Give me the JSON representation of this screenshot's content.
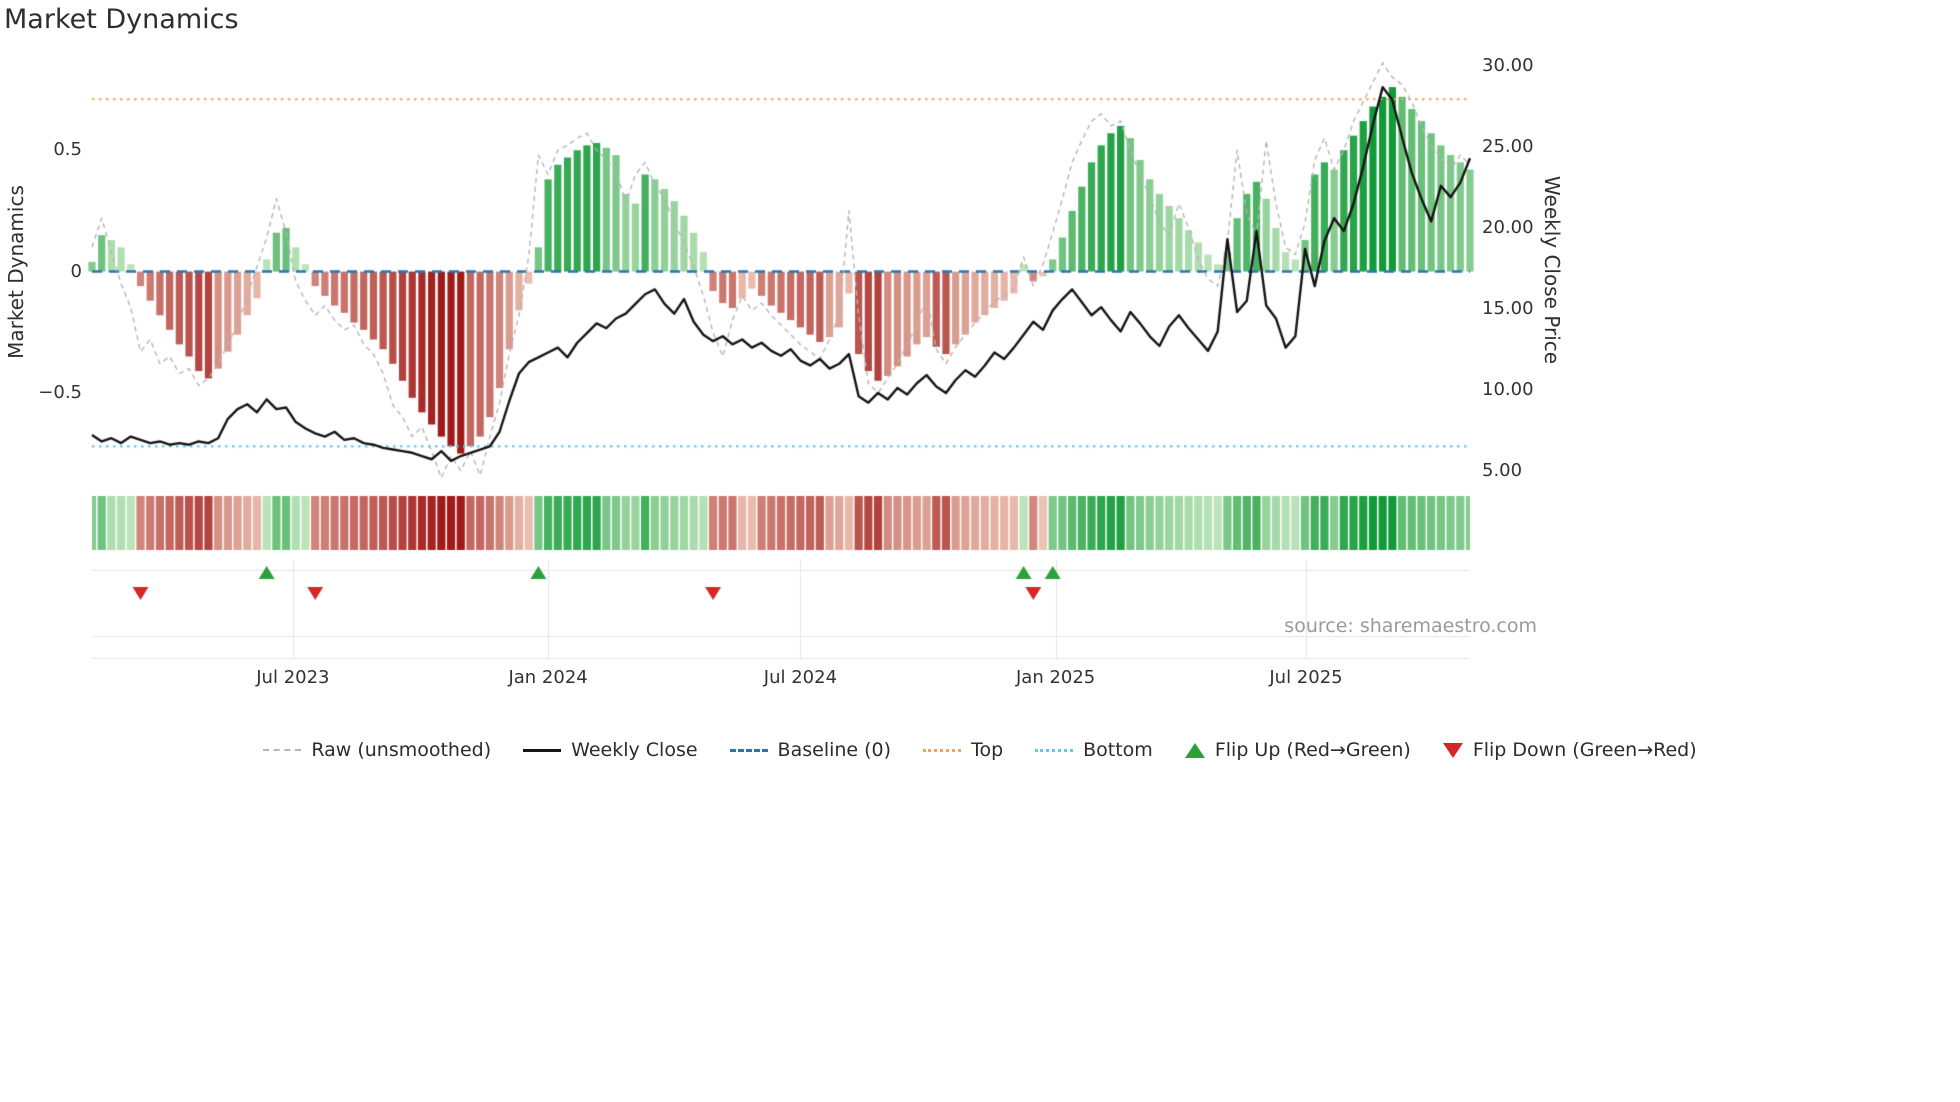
{
  "source": "source: sharemaestro.com",
  "chart_data": {
    "type": "mixed",
    "subtype": "weekly momentum bars + raw dashed line (left axis) + price line (right axis) + heatmap strip + flip markers",
    "title": "Market Dynamics",
    "x_axis": {
      "freq": "weekly",
      "start": "Feb 2023",
      "end": "Oct 2025",
      "ticks": [
        {
          "week": 20.7,
          "label": "Jul 2023"
        },
        {
          "week": 47.0,
          "label": "Jan 2024"
        },
        {
          "week": 73.0,
          "label": "Jul 2024"
        },
        {
          "week": 99.3,
          "label": "Jan 2025"
        },
        {
          "week": 125.1,
          "label": "Jul 2025"
        }
      ]
    },
    "left_axis": {
      "label": "Market Dynamics",
      "range": [
        -0.9,
        0.88
      ],
      "ticks": [
        {
          "v": 0.5,
          "label": "0.5"
        },
        {
          "v": 0,
          "label": "0"
        },
        {
          "v": -0.5,
          "label": "−0.5"
        }
      ]
    },
    "right_axis": {
      "label": "Weekly Close Price",
      "range": [
        3.8,
        30.5
      ],
      "ticks": [
        {
          "v": 30,
          "label": "30.00"
        },
        {
          "v": 25,
          "label": "25.00"
        },
        {
          "v": 20,
          "label": "20.00"
        },
        {
          "v": 15,
          "label": "15.00"
        },
        {
          "v": 10,
          "label": "10.00"
        },
        {
          "v": 5,
          "label": "5.00"
        }
      ]
    },
    "reference_lines": {
      "baseline": 0,
      "top": 0.71,
      "bottom": -0.72
    },
    "series": {
      "bars_market_dynamics": [
        0.04,
        0.15,
        0.13,
        0.1,
        0.03,
        -0.06,
        -0.12,
        -0.18,
        -0.24,
        -0.3,
        -0.35,
        -0.41,
        -0.44,
        -0.4,
        -0.33,
        -0.26,
        -0.18,
        -0.11,
        0.05,
        0.16,
        0.18,
        0.1,
        0.03,
        -0.06,
        -0.1,
        -0.14,
        -0.17,
        -0.21,
        -0.24,
        -0.28,
        -0.32,
        -0.38,
        -0.45,
        -0.52,
        -0.58,
        -0.63,
        -0.68,
        -0.72,
        -0.75,
        -0.72,
        -0.68,
        -0.6,
        -0.48,
        -0.32,
        -0.16,
        -0.05,
        0.1,
        0.38,
        0.44,
        0.47,
        0.5,
        0.52,
        0.53,
        0.51,
        0.48,
        0.32,
        0.28,
        0.4,
        0.38,
        0.34,
        0.29,
        0.23,
        0.16,
        0.08,
        -0.08,
        -0.13,
        -0.15,
        -0.11,
        -0.07,
        -0.1,
        -0.14,
        -0.17,
        -0.2,
        -0.23,
        -0.26,
        -0.29,
        -0.27,
        -0.23,
        -0.09,
        -0.34,
        -0.41,
        -0.45,
        -0.43,
        -0.39,
        -0.35,
        -0.3,
        -0.27,
        -0.31,
        -0.34,
        -0.3,
        -0.26,
        -0.21,
        -0.18,
        -0.15,
        -0.12,
        -0.09,
        0.03,
        -0.04,
        -0.02,
        0.05,
        0.14,
        0.25,
        0.35,
        0.45,
        0.52,
        0.57,
        0.6,
        0.55,
        0.46,
        0.38,
        0.32,
        0.27,
        0.22,
        0.17,
        0.12,
        0.07,
        0.03,
        0.08,
        0.22,
        0.32,
        0.37,
        0.3,
        0.18,
        0.08,
        0.05,
        0.13,
        0.4,
        0.45,
        0.42,
        0.5,
        0.56,
        0.62,
        0.68,
        0.72,
        0.76,
        0.72,
        0.67,
        0.62,
        0.57,
        0.52,
        0.48,
        0.45,
        0.42
      ],
      "raw_unsmoothed": [
        0.1,
        0.22,
        0.08,
        -0.05,
        -0.15,
        -0.33,
        -0.28,
        -0.38,
        -0.35,
        -0.42,
        -0.4,
        -0.47,
        -0.44,
        -0.38,
        -0.3,
        -0.22,
        -0.1,
        0.02,
        0.14,
        0.3,
        0.16,
        -0.04,
        -0.12,
        -0.18,
        -0.14,
        -0.2,
        -0.24,
        -0.22,
        -0.3,
        -0.34,
        -0.42,
        -0.55,
        -0.6,
        -0.68,
        -0.64,
        -0.74,
        -0.85,
        -0.76,
        -0.82,
        -0.74,
        -0.84,
        -0.68,
        -0.54,
        -0.34,
        -0.18,
        0.06,
        0.48,
        0.4,
        0.5,
        0.52,
        0.55,
        0.57,
        0.5,
        0.46,
        0.42,
        0.28,
        0.4,
        0.45,
        0.36,
        0.3,
        0.2,
        0.12,
        0.02,
        -0.1,
        -0.25,
        -0.35,
        -0.2,
        -0.1,
        -0.16,
        -0.13,
        -0.18,
        -0.22,
        -0.26,
        -0.3,
        -0.33,
        -0.36,
        -0.28,
        -0.18,
        0.25,
        -0.18,
        -0.46,
        -0.5,
        -0.44,
        -0.38,
        -0.3,
        -0.22,
        -0.1,
        -0.32,
        -0.38,
        -0.31,
        -0.26,
        -0.21,
        -0.17,
        -0.12,
        -0.1,
        -0.07,
        0.06,
        -0.06,
        0.03,
        0.16,
        0.3,
        0.45,
        0.54,
        0.62,
        0.65,
        0.6,
        0.62,
        0.5,
        0.4,
        0.31,
        0.2,
        0.15,
        0.28,
        0.18,
        0.05,
        -0.03,
        -0.06,
        0.12,
        0.5,
        0.24,
        0.15,
        0.54,
        0.28,
        0.1,
        0.07,
        0.2,
        0.46,
        0.55,
        0.42,
        0.5,
        0.62,
        0.7,
        0.78,
        0.86,
        0.8,
        0.77,
        0.7,
        0.6,
        0.52,
        0.47,
        0.42,
        0.48,
        0.44
      ],
      "weekly_close": [
        7.2,
        6.8,
        7.0,
        6.7,
        7.1,
        6.9,
        6.7,
        6.8,
        6.6,
        6.7,
        6.6,
        6.8,
        6.7,
        7.0,
        8.2,
        8.8,
        9.1,
        8.6,
        9.4,
        8.8,
        8.9,
        8.0,
        7.6,
        7.3,
        7.1,
        7.4,
        6.9,
        7.0,
        6.7,
        6.6,
        6.4,
        6.3,
        6.2,
        6.1,
        5.9,
        5.7,
        6.2,
        5.6,
        5.9,
        6.1,
        6.3,
        6.5,
        7.4,
        9.3,
        11.0,
        11.7,
        12.0,
        12.3,
        12.6,
        12.0,
        12.9,
        13.5,
        14.1,
        13.8,
        14.4,
        14.7,
        15.3,
        15.9,
        16.2,
        15.3,
        14.7,
        15.6,
        14.2,
        13.4,
        13.0,
        13.3,
        12.8,
        13.1,
        12.6,
        12.9,
        12.4,
        12.1,
        12.5,
        11.8,
        11.5,
        11.9,
        11.3,
        11.6,
        12.2,
        9.6,
        9.2,
        9.8,
        9.4,
        10.1,
        9.7,
        10.4,
        10.9,
        10.2,
        9.8,
        10.6,
        11.2,
        10.8,
        11.5,
        12.3,
        11.9,
        12.6,
        13.4,
        14.2,
        13.7,
        14.9,
        15.6,
        16.2,
        15.4,
        14.6,
        15.1,
        14.3,
        13.6,
        14.8,
        14.1,
        13.3,
        12.7,
        13.9,
        14.6,
        13.8,
        13.1,
        12.4,
        13.6,
        19.3,
        14.8,
        15.5,
        19.8,
        15.2,
        14.4,
        12.6,
        13.3,
        18.7,
        16.4,
        19.2,
        20.6,
        19.8,
        21.5,
        23.8,
        26.4,
        28.7,
        27.9,
        25.6,
        23.4,
        21.8,
        20.4,
        22.6,
        21.9,
        22.8,
        24.3
      ]
    },
    "flip_up_weeks": [
      18,
      46,
      96,
      99
    ],
    "flip_down_weeks": [
      5,
      23,
      64,
      97
    ],
    "panels": [
      "oscillator-with-price",
      "heatmap-strip",
      "flip-marker-strip"
    ],
    "colors": {
      "bar_pos_dark": "#129a38",
      "bar_pos_light": "#d8efcf",
      "bar_neg_dark": "#a01a1a",
      "bar_neg_light": "#f8ddcb",
      "raw_line": "#b5b5b5",
      "price_line": "#141414",
      "baseline": "#2577b5",
      "top_line": "#f0a455",
      "bottom_line": "#62c9ec",
      "flip_up": "#2ca03c",
      "flip_down": "#d62728"
    }
  },
  "legend": [
    {
      "label": "Raw (unsmoothed)",
      "swatch": "dashed",
      "name": "legend-raw"
    },
    {
      "label": "Weekly Close",
      "swatch": "solid",
      "name": "legend-weekly-close"
    },
    {
      "label": "Baseline (0)",
      "swatch": "longdash",
      "name": "legend-baseline"
    },
    {
      "label": "Top",
      "swatch": "dotted-top",
      "name": "legend-top"
    },
    {
      "label": "Bottom",
      "swatch": "dotted-bottom",
      "name": "legend-bottom"
    },
    {
      "label": "Flip Up (Red→Green)",
      "swatch": "triangle-up",
      "name": "legend-flip-up"
    },
    {
      "label": "Flip Down (Green→Red)",
      "swatch": "triangle-down",
      "name": "legend-flip-down"
    }
  ]
}
